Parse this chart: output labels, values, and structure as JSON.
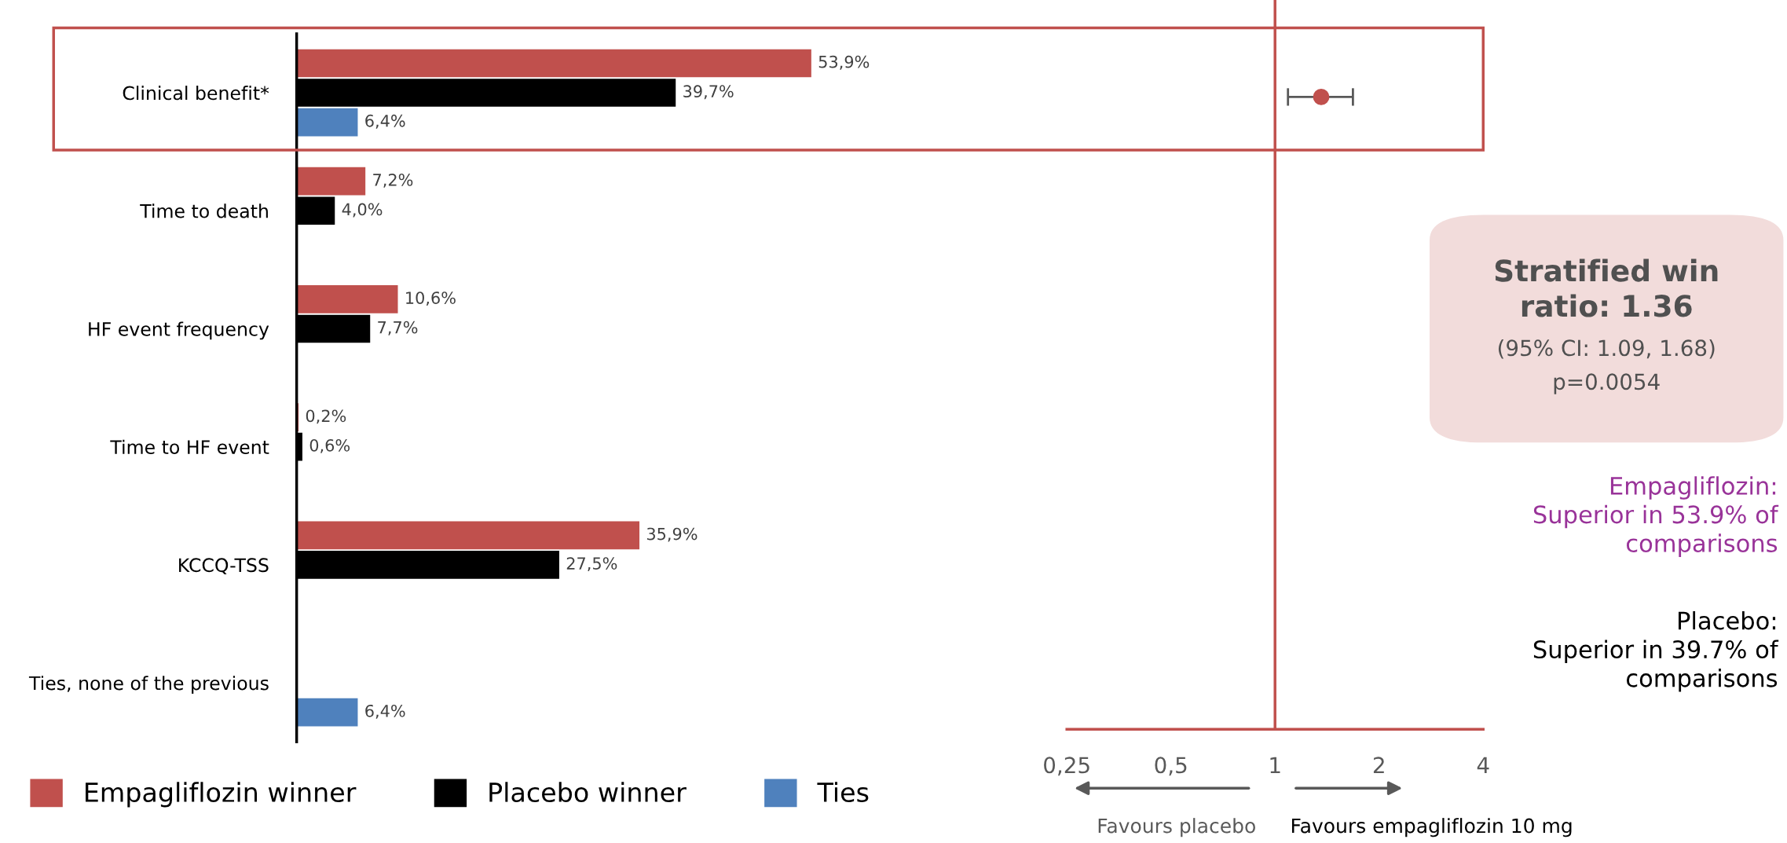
{
  "chart_data": [
    {
      "type": "bar",
      "orientation": "horizontal",
      "categories": [
        "Clinical benefit*",
        "Time to death",
        "HF event frequency",
        "Time to HF event",
        "KCCQ-TSS",
        "Ties, none of the previous"
      ],
      "series": [
        {
          "name": "Empagliflozin winner",
          "color": "#c0504d",
          "values": [
            53.9,
            7.2,
            10.6,
            0.2,
            35.9,
            null
          ],
          "value_labels": [
            "53,9%",
            "7,2%",
            "10,6%",
            "0,2%",
            "35,9%",
            null
          ]
        },
        {
          "name": "Placebo winner",
          "color": "#000000",
          "values": [
            39.7,
            4.0,
            7.7,
            0.6,
            27.5,
            null
          ],
          "value_labels": [
            "39,7%",
            "4,0%",
            "7,7%",
            "0,6%",
            "27,5%",
            null
          ]
        },
        {
          "name": "Ties",
          "color": "#4f81bd",
          "values": [
            6.4,
            null,
            null,
            null,
            null,
            6.4
          ],
          "value_labels": [
            "6,4%",
            null,
            null,
            null,
            null,
            "6,4%"
          ]
        }
      ],
      "legend": "bottom",
      "grid": false
    },
    {
      "type": "scatter",
      "orientation": "horizontal",
      "categories": [
        null
      ],
      "values": [
        1.36
      ],
      "errors": [
        [
          1.09,
          1.68
        ]
      ],
      "color": "#c0504d",
      "log": "x",
      "xlim": [
        0.25,
        4
      ],
      "xticks": [
        {
          "value": 0.25,
          "label": "0,25"
        },
        {
          "value": 0.5,
          "label": "0,5"
        },
        1,
        2,
        4
      ],
      "ref_lines": [
        {
          "axis": "x",
          "value": 1,
          "color": "#c0504d"
        }
      ],
      "annotations": [
        "Favours placebo",
        "Favours empagliflozin 10 mg",
        "Stratified win\nratio: 1.36",
        "(95% CI: 1.09, 1.68)",
        "p=0.0054",
        "Empagliflozin:\nSuperior in 53.9% of\ncomparisons",
        "Placebo:\nSuperior in 39.7% of\ncomparisons"
      ],
      "tick_labels": "x",
      "marker": "circle",
      "legend": false,
      "grid": false
    }
  ]
}
